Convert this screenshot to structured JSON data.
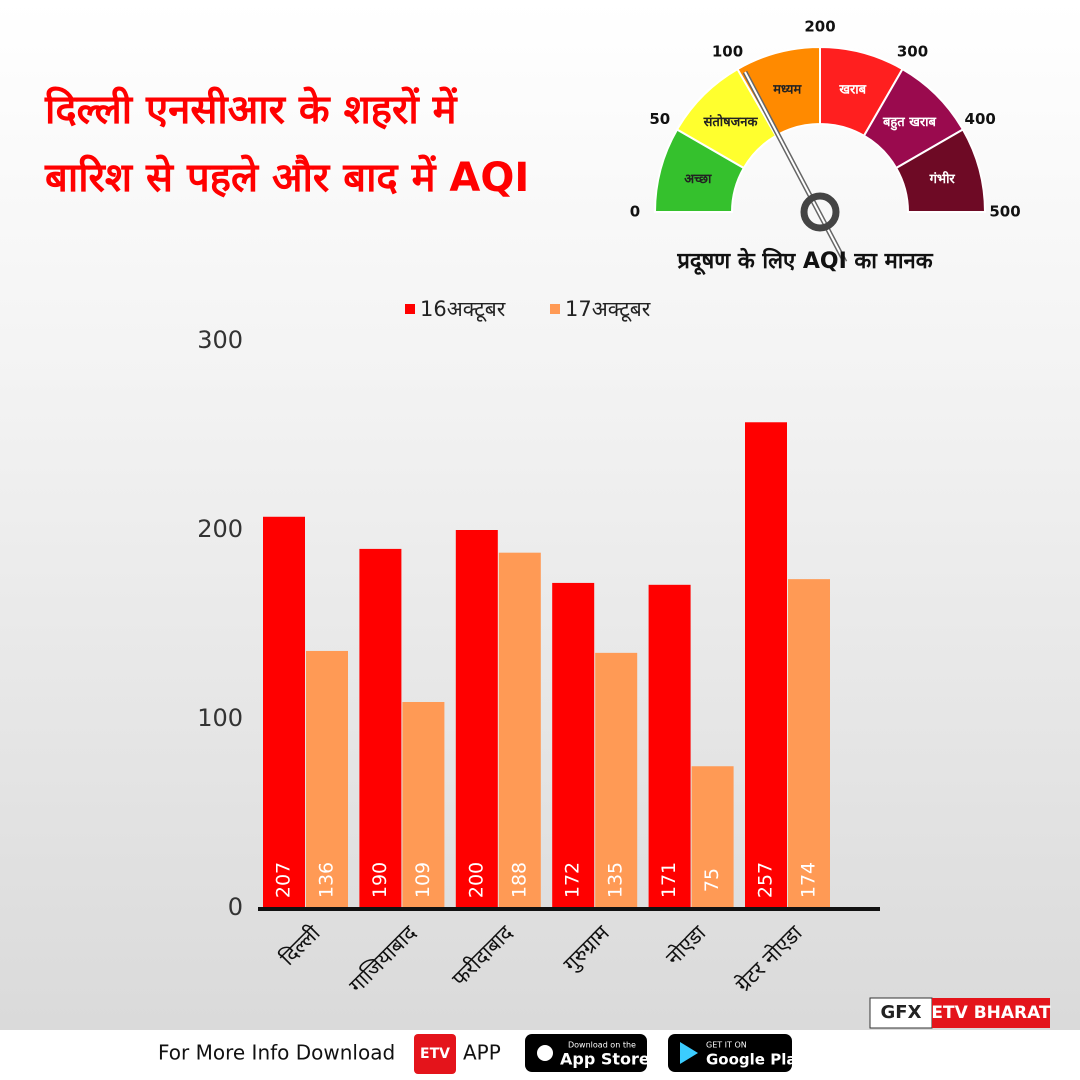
{
  "header": {
    "title_lines": [
      "दिल्ली एनसीआर के शहरों में",
      "बारिश से पहले और बाद में AQI"
    ]
  },
  "gauge": {
    "ticks": [
      0,
      50,
      100,
      200,
      300,
      400,
      500
    ],
    "segments": [
      {
        "label": "अच्छा",
        "color": "#35c12d"
      },
      {
        "label": "संतोषजनक",
        "color": "#ffff2e"
      },
      {
        "label": "मध्यम",
        "color": "#ff8a00"
      },
      {
        "label": "खराब",
        "color": "#ff1f1f"
      },
      {
        "label": "बहुत खराब",
        "color": "#9a0a4e"
      },
      {
        "label": "गंभीर",
        "color": "#6e0a25"
      }
    ],
    "caption": "प्रदूषण के लिए AQI का मानक"
  },
  "chart_data": {
    "type": "bar",
    "categories": [
      "दिल्ली",
      "गाजियाबाद",
      "फरीदाबाद",
      "गुरुग्राम",
      "नोएडा",
      "ग्रेटर नोएडा"
    ],
    "series": [
      {
        "name": "16अक्टूबर",
        "color": "#ff0000",
        "values": [
          207,
          190,
          200,
          172,
          171,
          257
        ]
      },
      {
        "name": "17अक्टूबर",
        "color": "#ff9a55",
        "values": [
          136,
          109,
          188,
          135,
          75,
          174
        ]
      }
    ],
    "ylim": [
      0,
      300
    ],
    "yticks": [
      0,
      100,
      200,
      300
    ],
    "grid": false,
    "legend": "top"
  },
  "footer": {
    "text": "For More Info Download",
    "logo": "ETV",
    "app": "APP",
    "appstore": [
      "Download on the",
      "App Store"
    ],
    "googleplay": [
      "GET IT ON",
      "Google Play"
    ]
  },
  "badge": {
    "left": "GFX",
    "right": "ETV BHARAT"
  }
}
